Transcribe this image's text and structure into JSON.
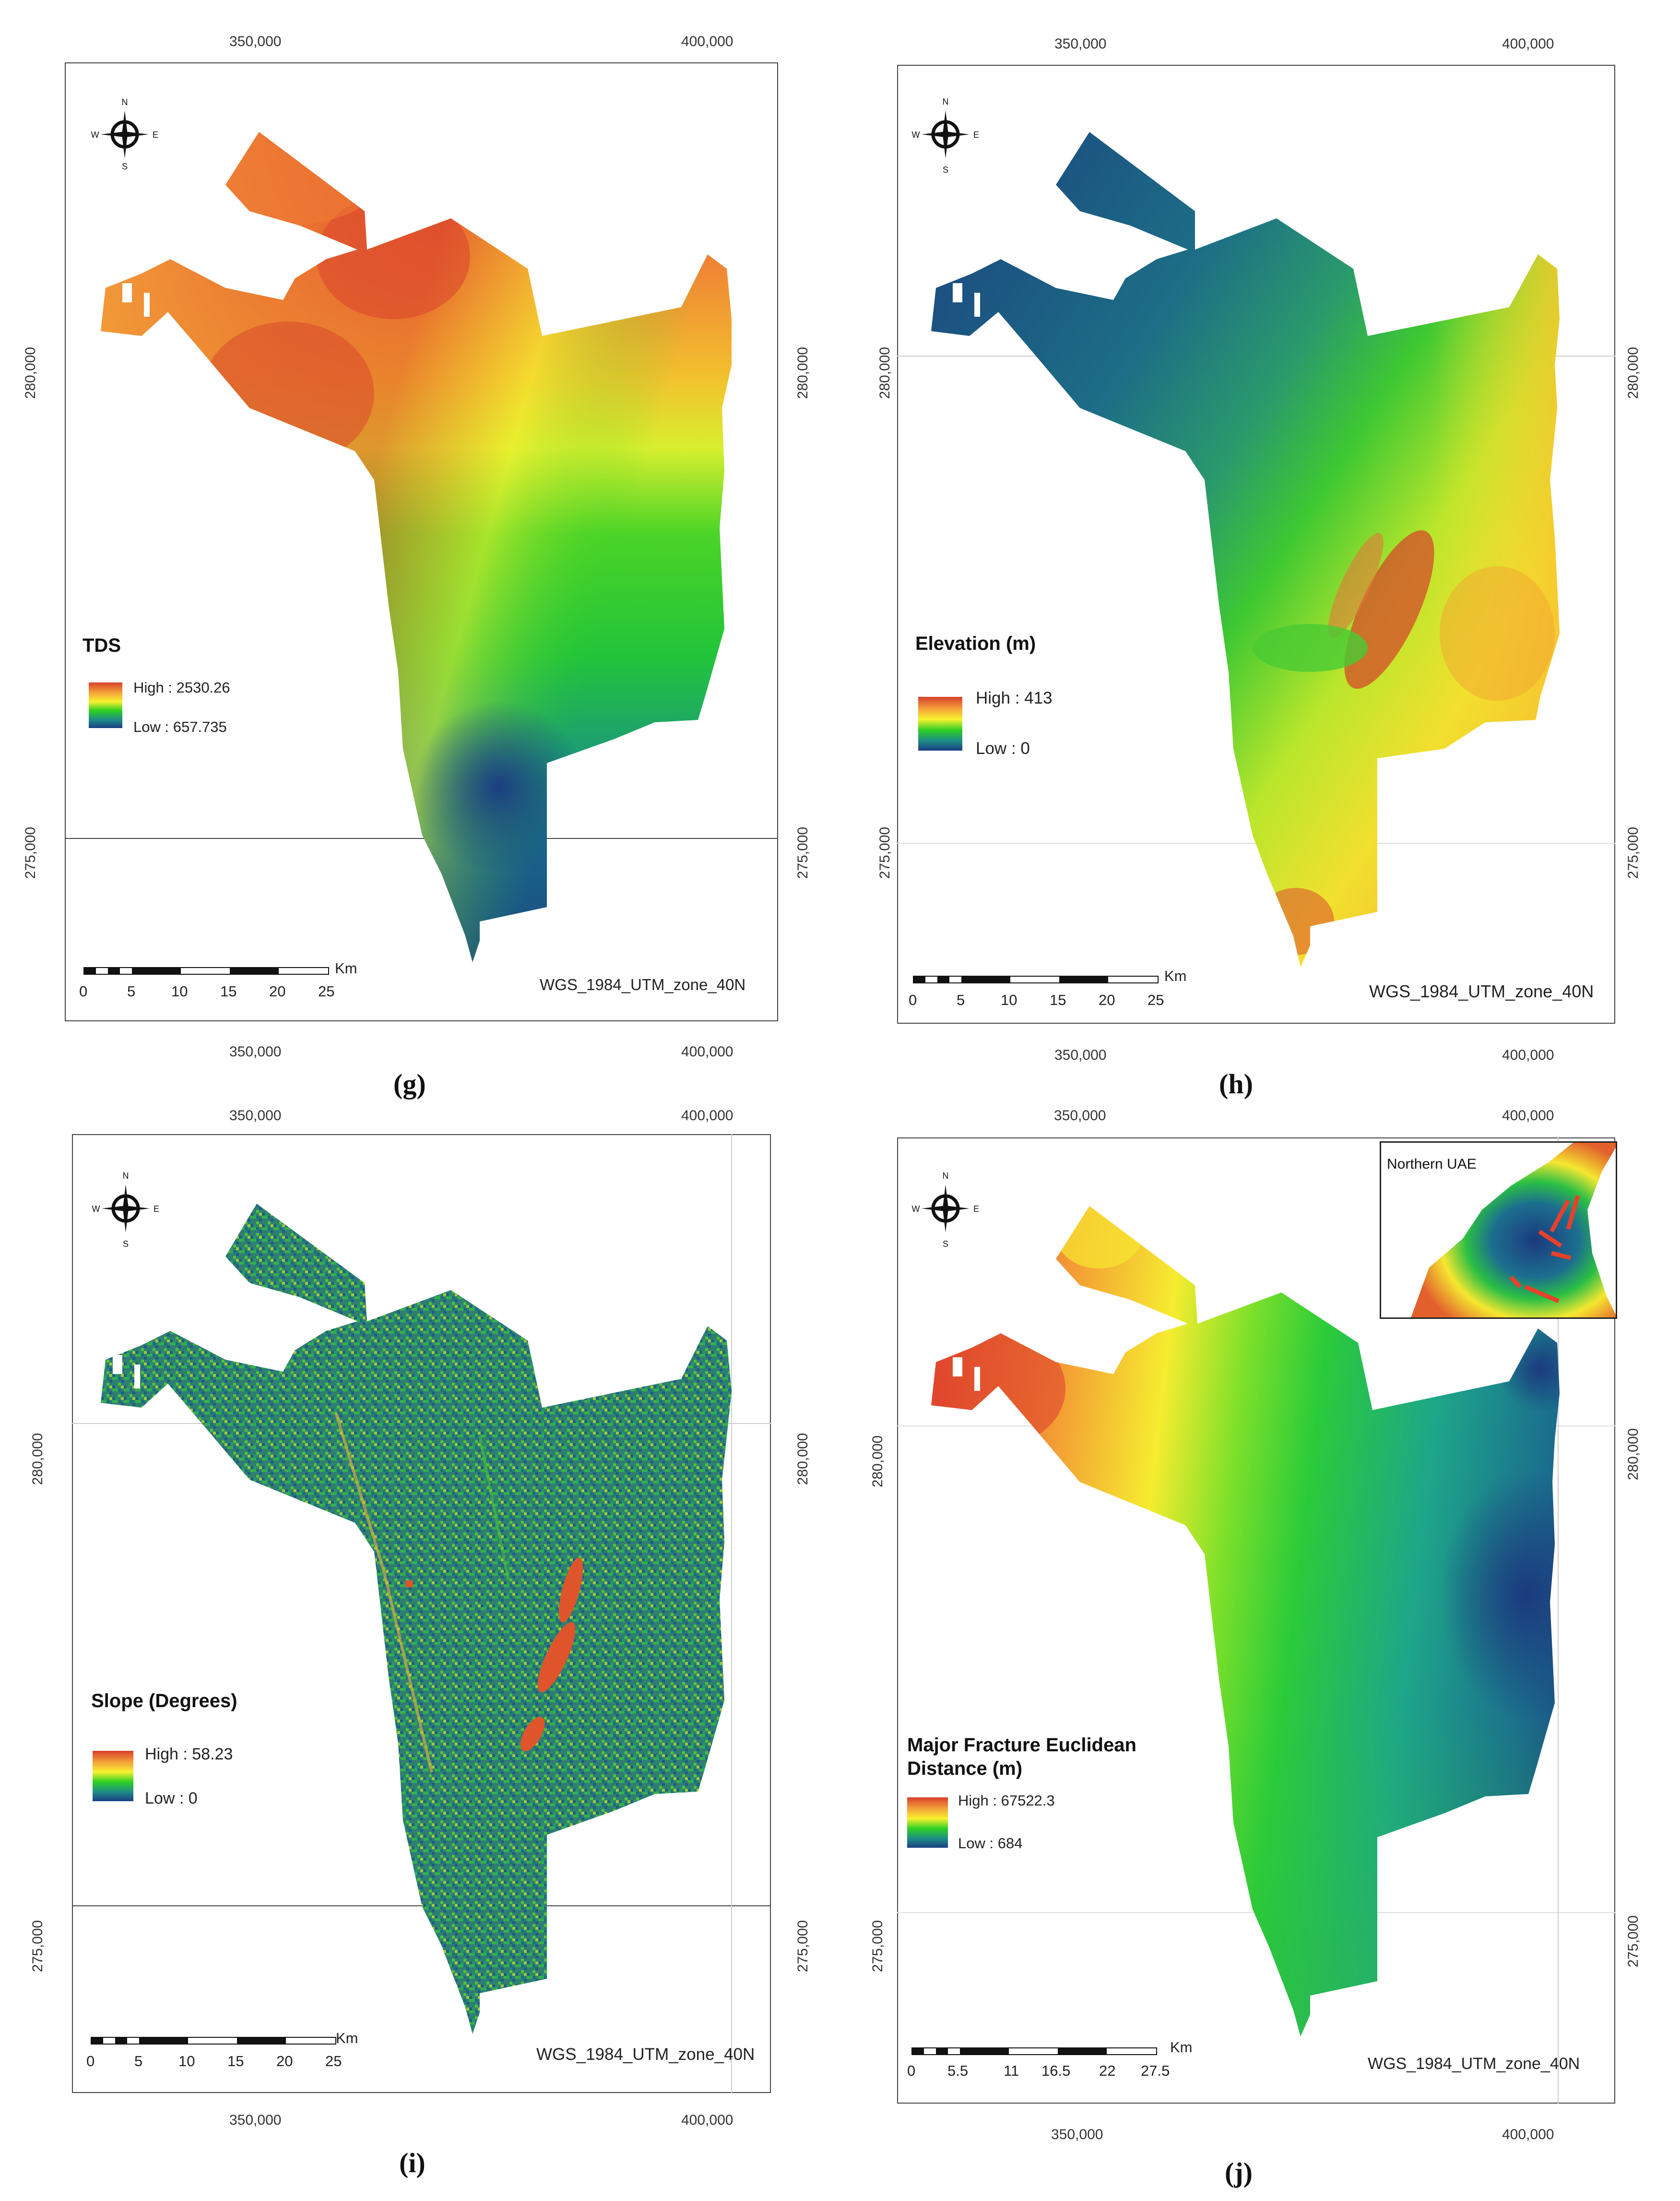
{
  "panels": [
    {
      "id": "g",
      "label": "(g)",
      "top_ticks": [
        "350,000",
        "400,000"
      ],
      "bottom_ticks": [
        "350,000",
        "400,000"
      ],
      "left_ticks": [
        "280,000",
        "275,000"
      ],
      "right_ticks": [
        "280,000",
        "275,000"
      ],
      "legend_title": "TDS",
      "legend_high": "High : 2530.26",
      "legend_low": "Low : 657.735",
      "crs": "WGS_1984_UTM_zone_40N",
      "scale_km": "Km",
      "scale_labels": [
        "0",
        "5",
        "10",
        "15",
        "20",
        "25"
      ],
      "compass": {
        "n": "N",
        "s": "S",
        "e": "E",
        "w": "W"
      }
    },
    {
      "id": "h",
      "label": "(h)",
      "top_ticks": [
        "350,000",
        "400,000"
      ],
      "bottom_ticks": [
        "350,000",
        "400,000"
      ],
      "left_ticks": [
        "280,000",
        "275,000"
      ],
      "right_ticks": [
        "280,000",
        "275,000"
      ],
      "legend_title": "Elevation (m)",
      "legend_high": "High : 413",
      "legend_low": "Low : 0",
      "crs": "WGS_1984_UTM_zone_40N",
      "scale_km": "Km",
      "scale_labels": [
        "0",
        "5",
        "10",
        "15",
        "20",
        "25"
      ],
      "compass": {
        "n": "N",
        "s": "S",
        "e": "E",
        "w": "W"
      }
    },
    {
      "id": "i",
      "label": "(i)",
      "top_ticks": [
        "350,000",
        "400,000"
      ],
      "bottom_ticks": [
        "350,000",
        "400,000"
      ],
      "left_ticks": [
        "280,000",
        "275,000"
      ],
      "right_ticks": [
        "280,000",
        "275,000"
      ],
      "legend_title": "Slope (Degrees)",
      "legend_high": "High : 58.23",
      "legend_low": "Low : 0",
      "crs": "WGS_1984_UTM_zone_40N",
      "scale_km": "Km",
      "scale_labels": [
        "0",
        "5",
        "10",
        "15",
        "20",
        "25"
      ],
      "compass": {
        "n": "N",
        "s": "S",
        "e": "E",
        "w": "W"
      }
    },
    {
      "id": "j",
      "label": "(j)",
      "top_ticks": [
        "350,000",
        "400,000"
      ],
      "bottom_ticks": [
        "350,000",
        "400,000"
      ],
      "left_ticks": [
        "280,000",
        "275,000"
      ],
      "right_ticks": [
        "280,000",
        "275,000"
      ],
      "legend_title_1": "Major Fracture Euclidean",
      "legend_title_2": "Distance (m)",
      "legend_high": "High : 67522.3",
      "legend_low": "Low : 684",
      "crs": "WGS_1984_UTM_zone_40N",
      "scale_km": "Km",
      "scale_labels": [
        "0",
        "5.5",
        "11",
        "16.5",
        "22",
        "27.5"
      ],
      "inset_title": "Northern UAE",
      "compass": {
        "n": "N",
        "s": "S",
        "e": "E",
        "w": "W"
      }
    }
  ],
  "colors": {
    "high": "#d7402a",
    "mid_high": "#f4a03a",
    "mid": "#f7f22f",
    "mid_low": "#2dcf23",
    "low_mid": "#1e8c88",
    "low": "#1b3e82",
    "fracture_lines": "#e8402a"
  }
}
